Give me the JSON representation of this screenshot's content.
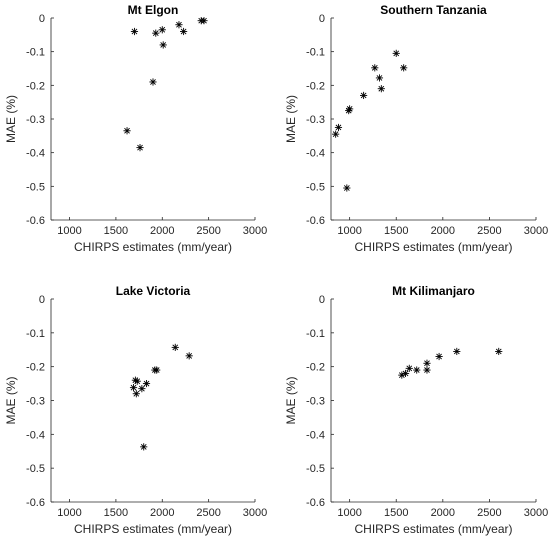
{
  "chart_data": [
    {
      "type": "scatter",
      "title": "Mt Elgon",
      "xlabel": "CHIRPS estimates (mm/year)",
      "ylabel": "MAE (%)",
      "xlim": [
        800,
        3000
      ],
      "ylim": [
        -0.6,
        0
      ],
      "xticks": [
        "1000",
        "1500",
        "2000",
        "2500",
        "3000"
      ],
      "yticks": [
        "0",
        "-0.1",
        "-0.2",
        "-0.3",
        "-0.4",
        "-0.5",
        "-0.6"
      ],
      "marker": "asterisk",
      "grid": false,
      "points": [
        {
          "x": 1700,
          "y": -0.04
        },
        {
          "x": 1930,
          "y": -0.045
        },
        {
          "x": 2000,
          "y": -0.035
        },
        {
          "x": 2180,
          "y": -0.02
        },
        {
          "x": 2230,
          "y": -0.04
        },
        {
          "x": 2420,
          "y": -0.008
        },
        {
          "x": 2450,
          "y": -0.008
        },
        {
          "x": 2010,
          "y": -0.08
        },
        {
          "x": 1900,
          "y": -0.19
        },
        {
          "x": 1620,
          "y": -0.335
        },
        {
          "x": 1760,
          "y": -0.385
        }
      ]
    },
    {
      "type": "scatter",
      "title": "Southern Tanzania",
      "xlabel": "CHIRPS estimates (mm/year)",
      "ylabel": "MAE (%)",
      "xlim": [
        800,
        3000
      ],
      "ylim": [
        -0.6,
        0
      ],
      "xticks": [
        "1000",
        "1500",
        "2000",
        "2500",
        "3000"
      ],
      "yticks": [
        "0",
        "-0.1",
        "-0.2",
        "-0.3",
        "-0.4",
        "-0.5",
        "-0.6"
      ],
      "marker": "asterisk",
      "grid": false,
      "points": [
        {
          "x": 1500,
          "y": -0.105
        },
        {
          "x": 1270,
          "y": -0.148
        },
        {
          "x": 1580,
          "y": -0.148
        },
        {
          "x": 1320,
          "y": -0.178
        },
        {
          "x": 1340,
          "y": -0.21
        },
        {
          "x": 1150,
          "y": -0.23
        },
        {
          "x": 1000,
          "y": -0.27
        },
        {
          "x": 990,
          "y": -0.275
        },
        {
          "x": 880,
          "y": -0.325
        },
        {
          "x": 850,
          "y": -0.345
        },
        {
          "x": 970,
          "y": -0.505
        }
      ]
    },
    {
      "type": "scatter",
      "title": "Lake Victoria",
      "xlabel": "CHIRPS estimates (mm/year)",
      "ylabel": "MAE (%)",
      "xlim": [
        800,
        3000
      ],
      "ylim": [
        -0.6,
        0
      ],
      "xticks": [
        "1000",
        "1500",
        "2000",
        "2500",
        "3000"
      ],
      "yticks": [
        "0",
        "-0.1",
        "-0.2",
        "-0.3",
        "-0.4",
        "-0.5",
        "-0.6"
      ],
      "marker": "asterisk",
      "grid": false,
      "points": [
        {
          "x": 2140,
          "y": -0.143
        },
        {
          "x": 2290,
          "y": -0.168
        },
        {
          "x": 1920,
          "y": -0.21
        },
        {
          "x": 1940,
          "y": -0.21
        },
        {
          "x": 1710,
          "y": -0.24
        },
        {
          "x": 1730,
          "y": -0.243
        },
        {
          "x": 1830,
          "y": -0.25
        },
        {
          "x": 1690,
          "y": -0.262
        },
        {
          "x": 1780,
          "y": -0.265
        },
        {
          "x": 1720,
          "y": -0.28
        },
        {
          "x": 1800,
          "y": -0.437
        }
      ]
    },
    {
      "type": "scatter",
      "title": "Mt Kilimanjaro",
      "xlabel": "CHIRPS estimates (mm/year)",
      "ylabel": "MAE (%)",
      "xlim": [
        800,
        3000
      ],
      "ylim": [
        -0.6,
        0
      ],
      "xticks": [
        "1000",
        "1500",
        "2000",
        "2500",
        "3000"
      ],
      "yticks": [
        "0",
        "-0.1",
        "-0.2",
        "-0.3",
        "-0.4",
        "-0.5",
        "-0.6"
      ],
      "marker": "asterisk",
      "grid": false,
      "points": [
        {
          "x": 2150,
          "y": -0.155
        },
        {
          "x": 2600,
          "y": -0.155
        },
        {
          "x": 1960,
          "y": -0.17
        },
        {
          "x": 1830,
          "y": -0.19
        },
        {
          "x": 1830,
          "y": -0.21
        },
        {
          "x": 1640,
          "y": -0.205
        },
        {
          "x": 1720,
          "y": -0.21
        },
        {
          "x": 1600,
          "y": -0.22
        },
        {
          "x": 1560,
          "y": -0.225
        }
      ]
    }
  ]
}
